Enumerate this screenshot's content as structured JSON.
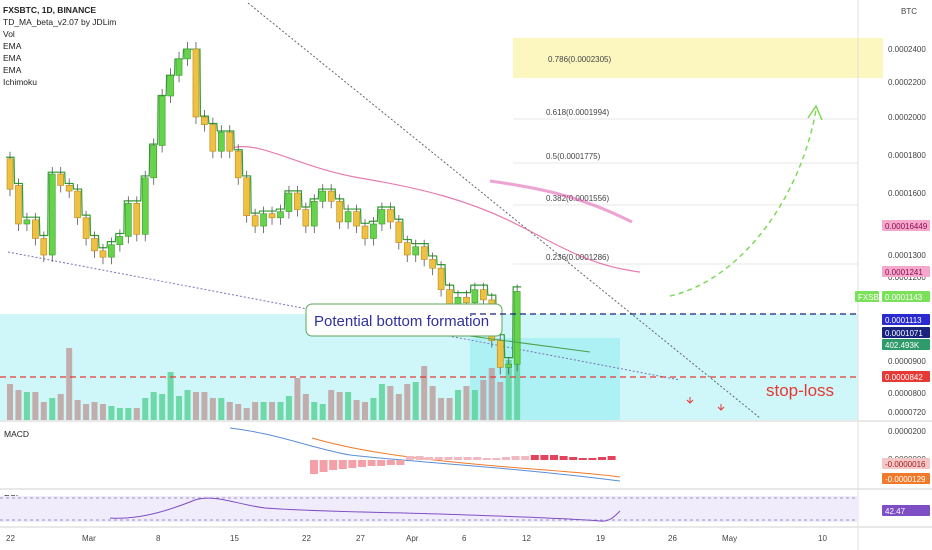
{
  "header": {
    "symbol": "FXSBTC, 1D, BINANCE",
    "indicator": "TD_MA_beta_v2.07 by JDLim",
    "vol": "Vol",
    "ema1": "EMA",
    "ema2": "EMA",
    "ema3": "EMA",
    "ichimoku": "Ichimoku"
  },
  "axis": {
    "currency": "BTC",
    "price_labels": [
      "0.0002400",
      "0.0002200",
      "0.0002000",
      "0.0001800",
      "0.0001600",
      "0.0001300",
      "0.0001200",
      "0.0000900",
      "0.0000800",
      "0.0000720"
    ],
    "x_labels": [
      "22",
      "Mar",
      "8",
      "15",
      "22",
      "27",
      "Apr",
      "6",
      "12",
      "19",
      "26",
      "May",
      "10"
    ]
  },
  "tags": {
    "ema_high": "0.00016449",
    "ema_low": "0.0001241",
    "fxsbtc_label": "FXSBTC",
    "fxsbtc_value": "0.0001143",
    "level_a": "0.0001113",
    "level_b": "0.0001071",
    "volume": "402.493K",
    "stop_tag": "0.0000842"
  },
  "fib": {
    "f786": "0.786(0.0002305)",
    "f618": "0.618(0.0001994)",
    "f5": "0.5(0.0001775)",
    "f382": "0.382(0.0001556)",
    "f236": "0.236(0.0001286)"
  },
  "annotations": {
    "bottom": "Potential bottom formation",
    "stoploss": "stop-loss"
  },
  "macd": {
    "title": "MACD",
    "axis": [
      "0.0000200",
      "0.0000000"
    ],
    "tag1": "-0.0000016",
    "tag2": "-0.0000129"
  },
  "rsi": {
    "title": "RSI",
    "tag": "42.47"
  },
  "colors": {
    "bull": "#66d44a",
    "bear": "#f0c040",
    "tdline": "#2e9e2e",
    "ema": "#e05a9e",
    "stop": "#e53935",
    "level": "#1a237e",
    "arrow": "#7ed957",
    "zone": "#a8f0f4"
  },
  "chart_data": {
    "type": "candlestick",
    "candles": [
      [
        0.000178,
        0.000162
      ],
      [
        0.000164,
        0.000145
      ],
      [
        0.000145,
        0.000147
      ],
      [
        0.000147,
        0.000138
      ],
      [
        0.000138,
        0.00013
      ],
      [
        0.00013,
        0.00017
      ],
      [
        0.00017,
        0.000164
      ],
      [
        0.000164,
        0.000161
      ],
      [
        0.000161,
        0.000148
      ],
      [
        0.000148,
        0.000138
      ],
      [
        0.000138,
        0.000132
      ],
      [
        0.000132,
        0.000129
      ],
      [
        0.000129,
        0.000135
      ],
      [
        0.000135,
        0.000139
      ],
      [
        0.000139,
        0.000155
      ],
      [
        0.000155,
        0.00014
      ],
      [
        0.00014,
        0.000168
      ],
      [
        0.000168,
        0.000185
      ],
      [
        0.000185,
        0.000212
      ],
      [
        0.000212,
        0.000224
      ],
      [
        0.000224,
        0.000234
      ],
      [
        0.000234,
        0.00024
      ],
      [
        0.00024,
        0.0002
      ],
      [
        0.0002,
        0.000196
      ],
      [
        0.000196,
        0.000182
      ],
      [
        0.000182,
        0.000192
      ],
      [
        0.000192,
        0.000182
      ],
      [
        0.000182,
        0.000168
      ],
      [
        0.000168,
        0.000149
      ],
      [
        0.000149,
        0.000144
      ],
      [
        0.000144,
        0.00015
      ],
      [
        0.00015,
        0.000148
      ],
      [
        0.000148,
        0.000151
      ],
      [
        0.000151,
        0.00016
      ],
      [
        0.00016,
        0.000152
      ],
      [
        0.000152,
        0.000144
      ],
      [
        0.000144,
        0.000156
      ],
      [
        0.000156,
        0.000161
      ],
      [
        0.000161,
        0.000156
      ],
      [
        0.000156,
        0.000146
      ],
      [
        0.000146,
        0.000151
      ],
      [
        0.000151,
        0.000144
      ],
      [
        0.000144,
        0.000138
      ],
      [
        0.000138,
        0.000145
      ],
      [
        0.000145,
        0.000152
      ],
      [
        0.000152,
        0.000146
      ],
      [
        0.000146,
        0.000136
      ],
      [
        0.000136,
        0.00013
      ],
      [
        0.00013,
        0.000134
      ],
      [
        0.000134,
        0.000128
      ],
      [
        0.000128,
        0.000124
      ],
      [
        0.000124,
        0.000115
      ],
      [
        0.000115,
        0.000108
      ],
      [
        0.000108,
        0.000112
      ],
      [
        0.000112,
        0.00011
      ],
      [
        0.00011,
        0.000115
      ],
      [
        0.000115,
        0.000111
      ],
      [
        0.000111,
        9.7e-05
      ],
      [
        9.7e-05,
        8.8e-05
      ],
      [
        8.8e-05,
        8.9e-05
      ],
      [
        8.9e-05,
        0.0001143
      ]
    ],
    "ylim": [
      7e-05,
      0.00025
    ]
  }
}
